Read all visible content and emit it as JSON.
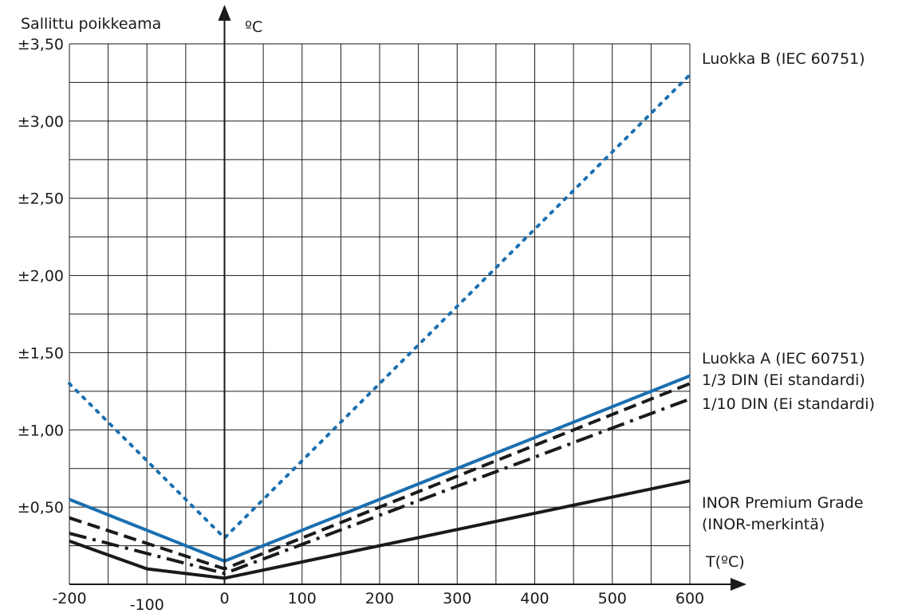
{
  "chart_data": {
    "type": "line",
    "ylabel": "Sallittu poikkeama",
    "yunit": "ºC",
    "xlabel": "T(ºC)",
    "x_ticks": [
      "-200",
      "-100",
      "0",
      "100",
      "200",
      "300",
      "400",
      "500",
      "600"
    ],
    "y_ticks": [
      "±0,50",
      "±1,00",
      "±1,50",
      "±2,00",
      "±2,50",
      "±3,00",
      "±3,50"
    ],
    "xlim": [
      -200,
      600
    ],
    "ylim": [
      0,
      3.5
    ],
    "grid": true,
    "colors": {
      "blue": "#1a6fb0",
      "black": "#1a1a1a"
    },
    "series": [
      {
        "name": "Luokka B (IEC 60751)",
        "style": "dotted",
        "color": "#1a6fb0",
        "x": [
          -200,
          0,
          600
        ],
        "y": [
          1.3,
          0.3,
          3.3
        ]
      },
      {
        "name": "Luokka A (IEC 60751)",
        "style": "solid",
        "color": "#1a6fb0",
        "x": [
          -200,
          0,
          600
        ],
        "y": [
          0.55,
          0.15,
          1.35
        ]
      },
      {
        "name": "1/3 DIN (Ei standardi)",
        "style": "dashed",
        "color": "#1a1a1a",
        "x": [
          -200,
          0,
          600
        ],
        "y": [
          0.43,
          0.1,
          1.3
        ]
      },
      {
        "name": "1/10 DIN (Ei standardi)",
        "style": "dashdot",
        "color": "#1a1a1a",
        "x": [
          -200,
          0,
          600
        ],
        "y": [
          0.33,
          0.07,
          1.2
        ]
      },
      {
        "name": "INOR Premium Grade",
        "style": "solid",
        "color": "#1a1a1a",
        "x": [
          -200,
          -100,
          0,
          600
        ],
        "y": [
          0.28,
          0.1,
          0.04,
          0.67
        ]
      }
    ],
    "annotations": [
      "INOR Premium Grade",
      "(INOR-merkintä)"
    ]
  }
}
